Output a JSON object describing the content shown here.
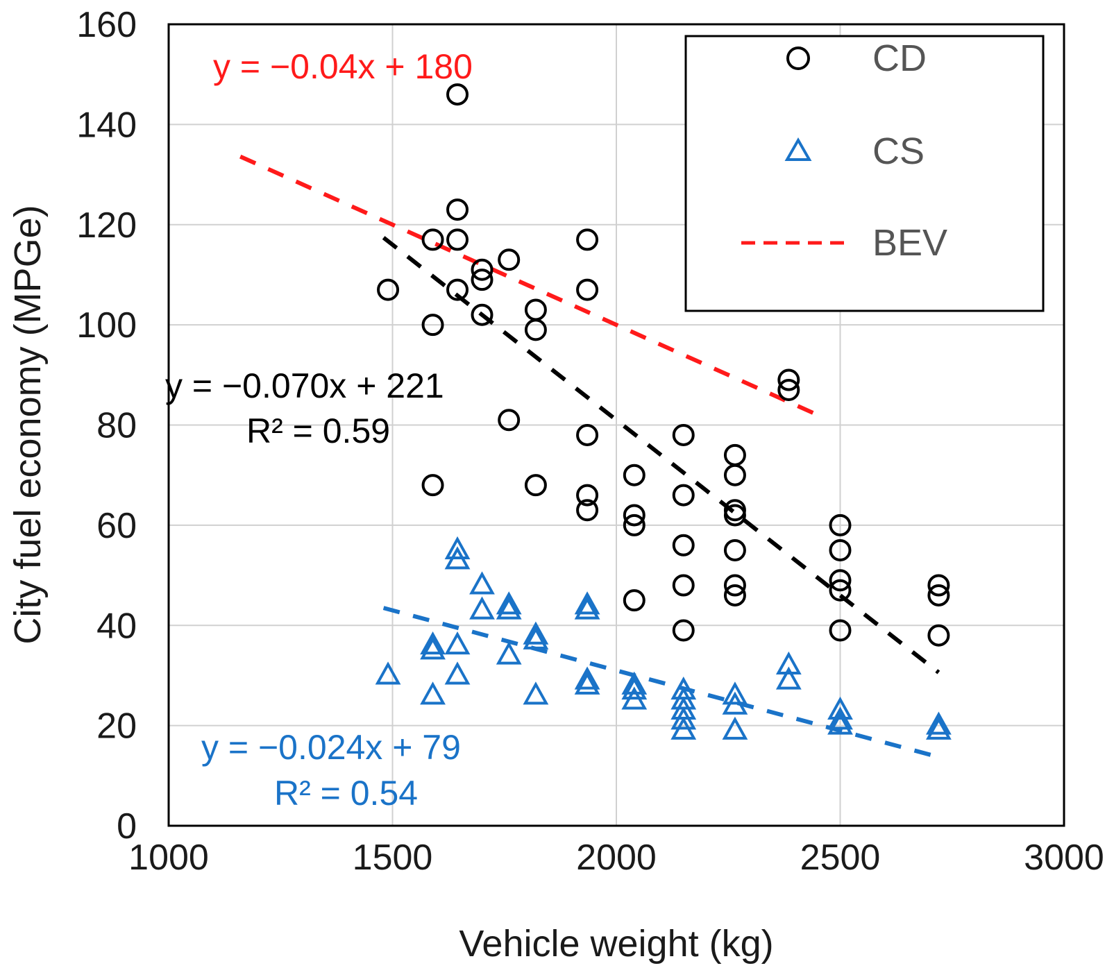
{
  "chart_data": {
    "type": "scatter",
    "xlabel": "Vehicle weight (kg)",
    "ylabel": "City fuel economy (MPGe)",
    "xlim": [
      1000,
      3000
    ],
    "ylim": [
      0,
      160
    ],
    "x_ticks": [
      "1000",
      "1500",
      "2000",
      "2500",
      "3000"
    ],
    "y_ticks": [
      "0",
      "20",
      "40",
      "60",
      "80",
      "100",
      "120",
      "140",
      "160"
    ],
    "grid": true,
    "legend_position": "top-right",
    "colors": {
      "CD": "#000000",
      "CS": "#1a73c8",
      "BEV": "#ff1a1a"
    },
    "series": [
      {
        "name": "CD",
        "marker": "circle",
        "points": [
          [
            1490,
            107
          ],
          [
            1590,
            117
          ],
          [
            1590,
            100
          ],
          [
            1590,
            68
          ],
          [
            1645,
            146
          ],
          [
            1645,
            123
          ],
          [
            1645,
            117
          ],
          [
            1645,
            107
          ],
          [
            1700,
            111
          ],
          [
            1700,
            109
          ],
          [
            1700,
            102
          ],
          [
            1760,
            113
          ],
          [
            1760,
            81
          ],
          [
            1820,
            103
          ],
          [
            1820,
            99
          ],
          [
            1820,
            68
          ],
          [
            1935,
            117
          ],
          [
            1935,
            107
          ],
          [
            1935,
            78
          ],
          [
            1935,
            66
          ],
          [
            1935,
            63
          ],
          [
            2040,
            70
          ],
          [
            2040,
            62
          ],
          [
            2040,
            60
          ],
          [
            2040,
            45
          ],
          [
            2150,
            78
          ],
          [
            2150,
            66
          ],
          [
            2150,
            56
          ],
          [
            2150,
            48
          ],
          [
            2150,
            39
          ],
          [
            2265,
            74
          ],
          [
            2265,
            70
          ],
          [
            2265,
            63
          ],
          [
            2265,
            62
          ],
          [
            2265,
            55
          ],
          [
            2265,
            48
          ],
          [
            2265,
            46
          ],
          [
            2385,
            89
          ],
          [
            2385,
            87
          ],
          [
            2500,
            60
          ],
          [
            2500,
            55
          ],
          [
            2500,
            49
          ],
          [
            2500,
            47
          ],
          [
            2500,
            39
          ],
          [
            2720,
            48
          ],
          [
            2720,
            46
          ],
          [
            2720,
            38
          ]
        ]
      },
      {
        "name": "CS",
        "marker": "triangle",
        "points": [
          [
            1490,
            30
          ],
          [
            1590,
            36
          ],
          [
            1590,
            35
          ],
          [
            1590,
            26
          ],
          [
            1645,
            55
          ],
          [
            1645,
            53
          ],
          [
            1645,
            36
          ],
          [
            1645,
            30
          ],
          [
            1700,
            48
          ],
          [
            1700,
            43
          ],
          [
            1760,
            44
          ],
          [
            1760,
            43
          ],
          [
            1760,
            34
          ],
          [
            1820,
            38
          ],
          [
            1820,
            37
          ],
          [
            1820,
            26
          ],
          [
            1935,
            44
          ],
          [
            1935,
            43
          ],
          [
            1935,
            29
          ],
          [
            1935,
            28
          ],
          [
            2040,
            28
          ],
          [
            2040,
            27
          ],
          [
            2040,
            25
          ],
          [
            2150,
            27
          ],
          [
            2150,
            25
          ],
          [
            2150,
            23
          ],
          [
            2150,
            21
          ],
          [
            2150,
            19
          ],
          [
            2265,
            26
          ],
          [
            2265,
            24
          ],
          [
            2265,
            19
          ],
          [
            2385,
            32
          ],
          [
            2385,
            29
          ],
          [
            2500,
            23
          ],
          [
            2500,
            21
          ],
          [
            2500,
            20
          ],
          [
            2720,
            20
          ],
          [
            2720,
            19
          ]
        ]
      }
    ],
    "trendlines": [
      {
        "name": "BEV",
        "x_range": [
          1160,
          2440
        ],
        "slope": -0.04,
        "intercept": 180
      },
      {
        "name": "CD",
        "x_range": [
          1480,
          2720
        ],
        "slope": -0.07,
        "intercept": 221
      },
      {
        "name": "CS",
        "x_range": [
          1480,
          2720
        ],
        "slope": -0.024,
        "intercept": 79
      }
    ],
    "legend": [
      {
        "label": "CD",
        "marker": "circle"
      },
      {
        "label": "CS",
        "marker": "triangle"
      },
      {
        "label": "BEV",
        "marker": "dashed-line"
      }
    ],
    "annotations": [
      {
        "text": "y = −0.04x + 180",
        "color": "BEV"
      },
      {
        "text": "y = −0.070x + 221",
        "color": "CD"
      },
      {
        "text": "R² = 0.59",
        "color": "CD"
      },
      {
        "text": "y = −0.024x + 79",
        "color": "CS"
      },
      {
        "text": "R² = 0.54",
        "color": "CS"
      }
    ]
  }
}
